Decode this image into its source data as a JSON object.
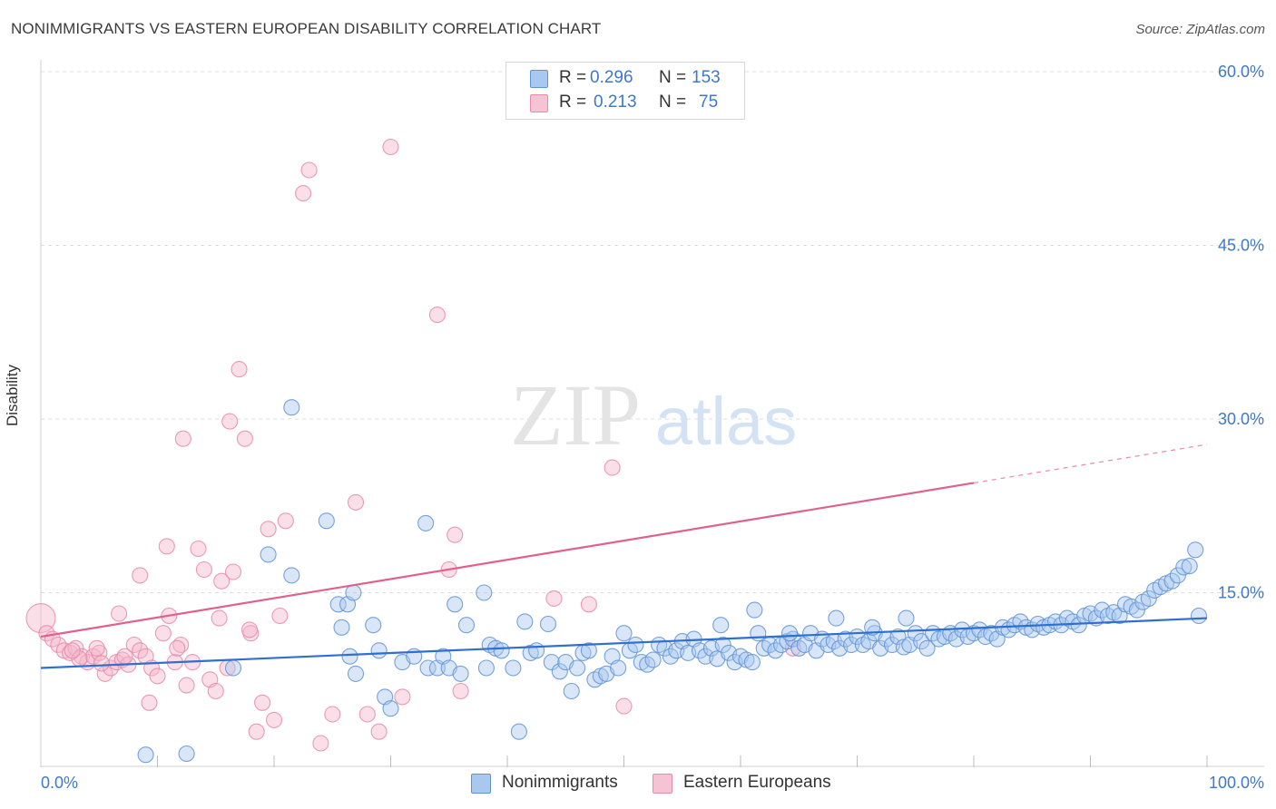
{
  "header": {
    "title": "NONIMMIGRANTS VS EASTERN EUROPEAN DISABILITY CORRELATION CHART",
    "source": "Source: ZipAtlas.com"
  },
  "watermark": {
    "zip": "ZIP",
    "atlas": "atlas"
  },
  "legend": {
    "rows": [
      {
        "r_label": "R =",
        "r_value": "0.296",
        "n_label": "N =",
        "n_value": "153"
      },
      {
        "r_label": "R =",
        "r_value": "0.213",
        "n_label": "N =",
        "n_value": "75"
      }
    ]
  },
  "bottom_legend": {
    "items": [
      {
        "label": "Nonimmigrants"
      },
      {
        "label": "Eastern Europeans"
      }
    ]
  },
  "colors": {
    "blue_fill": "#a9c8ef",
    "blue_stroke": "#5f93d6",
    "blue_line": "#2f6fcf",
    "pink_fill": "#f5b8cb",
    "pink_stroke": "#e88aa8",
    "pink_line": "#e0628c",
    "axis_label": "#3f78c8",
    "grid": "#dddddd"
  },
  "chart_data": {
    "type": "scatter",
    "title": "NONIMMIGRANTS VS EASTERN EUROPEAN DISABILITY CORRELATION CHART",
    "xlabel": "",
    "ylabel": "Disability",
    "xlim": [
      0,
      100
    ],
    "ylim": [
      0,
      60
    ],
    "x_tick_labels": [
      "0.0%",
      "100.0%"
    ],
    "y_ticks": [
      15,
      30,
      45,
      60
    ],
    "y_tick_labels": [
      "15.0%",
      "30.0%",
      "45.0%",
      "60.0%"
    ],
    "grid": true,
    "legend_position": "top-center",
    "series": [
      {
        "name": "Nonimmigrants",
        "color": "#5f93d6",
        "trend": {
          "x": [
            0,
            100
          ],
          "y": [
            8.5,
            12.8
          ],
          "dashed_from": null
        },
        "points": [
          [
            9,
            1.0
          ],
          [
            12.5,
            1.1
          ],
          [
            16.5,
            8.5
          ],
          [
            21.5,
            31.0
          ],
          [
            19.5,
            18.3
          ],
          [
            21.5,
            16.5
          ],
          [
            24.5,
            21.2
          ],
          [
            25.5,
            14.0
          ],
          [
            25.8,
            12.0
          ],
          [
            26.3,
            14.0
          ],
          [
            26.5,
            9.5
          ],
          [
            26.8,
            15.0
          ],
          [
            27,
            8.0
          ],
          [
            28.5,
            12.2
          ],
          [
            29,
            10.0
          ],
          [
            29.5,
            6.0
          ],
          [
            30,
            5.0
          ],
          [
            31,
            9.0
          ],
          [
            32,
            9.5
          ],
          [
            33,
            21.0
          ],
          [
            33.2,
            8.5
          ],
          [
            34,
            8.5
          ],
          [
            34.5,
            9.5
          ],
          [
            35,
            8.5
          ],
          [
            35.5,
            14.0
          ],
          [
            36,
            8.0
          ],
          [
            36.5,
            12.2
          ],
          [
            38,
            15.0
          ],
          [
            38.2,
            8.5
          ],
          [
            38.5,
            10.5
          ],
          [
            39,
            10.2
          ],
          [
            39.5,
            10.0
          ],
          [
            40.5,
            8.5
          ],
          [
            41,
            3.0
          ],
          [
            41.5,
            12.5
          ],
          [
            42,
            9.8
          ],
          [
            42.5,
            10.0
          ],
          [
            43.5,
            12.3
          ],
          [
            43.8,
            9.0
          ],
          [
            44.5,
            8.2
          ],
          [
            45,
            9.0
          ],
          [
            45.5,
            6.5
          ],
          [
            46,
            8.5
          ],
          [
            46.5,
            9.8
          ],
          [
            47,
            10.0
          ],
          [
            47.5,
            7.5
          ],
          [
            48,
            7.8
          ],
          [
            48.5,
            8.0
          ],
          [
            49,
            9.5
          ],
          [
            49.5,
            8.5
          ],
          [
            50,
            11.5
          ],
          [
            50.5,
            10.0
          ],
          [
            51,
            10.5
          ],
          [
            51.5,
            9.0
          ],
          [
            52,
            8.8
          ],
          [
            52.5,
            9.2
          ],
          [
            53,
            10.5
          ],
          [
            53.5,
            10.2
          ],
          [
            54,
            9.5
          ],
          [
            54.5,
            10.0
          ],
          [
            55,
            10.8
          ],
          [
            55.5,
            9.8
          ],
          [
            56,
            11.0
          ],
          [
            56.5,
            10.0
          ],
          [
            57,
            9.5
          ],
          [
            57.5,
            10.2
          ],
          [
            58,
            9.3
          ],
          [
            58.5,
            10.5
          ],
          [
            59,
            9.8
          ],
          [
            59.5,
            9.0
          ],
          [
            60,
            9.5
          ],
          [
            60.5,
            9.2
          ],
          [
            61,
            9.0
          ],
          [
            61.5,
            11.5
          ],
          [
            62,
            10.2
          ],
          [
            62.5,
            10.5
          ],
          [
            63,
            10.0
          ],
          [
            63.5,
            10.5
          ],
          [
            64,
            10.8
          ],
          [
            64.5,
            11.0
          ],
          [
            65,
            10.2
          ],
          [
            65.5,
            10.5
          ],
          [
            66,
            11.5
          ],
          [
            66.5,
            10.0
          ],
          [
            67,
            11.0
          ],
          [
            67.5,
            10.5
          ],
          [
            68,
            10.8
          ],
          [
            68.5,
            10.2
          ],
          [
            69,
            11.0
          ],
          [
            69.5,
            10.5
          ],
          [
            70,
            11.2
          ],
          [
            70.5,
            10.5
          ],
          [
            71,
            10.8
          ],
          [
            71.5,
            11.5
          ],
          [
            72,
            10.2
          ],
          [
            72.5,
            11.0
          ],
          [
            73,
            10.5
          ],
          [
            73.5,
            11.2
          ],
          [
            74,
            10.3
          ],
          [
            74.5,
            10.5
          ],
          [
            75,
            11.5
          ],
          [
            75.5,
            10.8
          ],
          [
            76,
            10.2
          ],
          [
            76.5,
            11.5
          ],
          [
            77,
            11.0
          ],
          [
            77.5,
            11.2
          ],
          [
            78,
            11.5
          ],
          [
            78.5,
            11.0
          ],
          [
            79,
            11.8
          ],
          [
            79.5,
            11.2
          ],
          [
            80,
            11.5
          ],
          [
            80.5,
            11.8
          ],
          [
            81,
            11.2
          ],
          [
            81.5,
            11.5
          ],
          [
            82,
            11.0
          ],
          [
            82.5,
            12.0
          ],
          [
            83,
            11.8
          ],
          [
            83.5,
            12.2
          ],
          [
            84,
            12.5
          ],
          [
            84.5,
            12.0
          ],
          [
            85,
            11.8
          ],
          [
            85.5,
            12.3
          ],
          [
            86,
            12.0
          ],
          [
            86.5,
            12.2
          ],
          [
            87,
            12.5
          ],
          [
            87.5,
            12.2
          ],
          [
            88,
            12.8
          ],
          [
            88.5,
            12.5
          ],
          [
            89,
            12.2
          ],
          [
            89.5,
            13.0
          ],
          [
            90,
            13.2
          ],
          [
            90.5,
            12.8
          ],
          [
            91,
            13.5
          ],
          [
            91.5,
            13.0
          ],
          [
            92,
            13.3
          ],
          [
            92.5,
            13.0
          ],
          [
            93,
            14.0
          ],
          [
            93.5,
            13.8
          ],
          [
            94,
            13.5
          ],
          [
            94.5,
            14.2
          ],
          [
            95,
            14.5
          ],
          [
            95.5,
            15.2
          ],
          [
            96,
            15.5
          ],
          [
            96.5,
            15.8
          ],
          [
            97,
            16.0
          ],
          [
            97.5,
            16.5
          ],
          [
            98,
            17.2
          ],
          [
            98.5,
            17.3
          ],
          [
            99,
            18.7
          ],
          [
            99.3,
            13.0
          ],
          [
            58.3,
            12.2
          ],
          [
            61.2,
            13.5
          ],
          [
            64.2,
            11.5
          ],
          [
            68.2,
            12.8
          ],
          [
            71.3,
            12.0
          ],
          [
            74.2,
            12.8
          ]
        ]
      },
      {
        "name": "Eastern Europeans",
        "color": "#e88aa8",
        "trend": {
          "x": [
            0,
            100
          ],
          "y": [
            11.2,
            27.8
          ],
          "dashed_from": 80
        },
        "points": [
          [
            0,
            12.8
          ],
          [
            0.5,
            11.5
          ],
          [
            1,
            11.0
          ],
          [
            1.5,
            10.5
          ],
          [
            2,
            10.0
          ],
          [
            2.5,
            9.8
          ],
          [
            3,
            10.2
          ],
          [
            3.5,
            9.5
          ],
          [
            4,
            9.0
          ],
          [
            4.5,
            9.5
          ],
          [
            5,
            9.8
          ],
          [
            5.5,
            8.0
          ],
          [
            6,
            8.5
          ],
          [
            6.5,
            9.0
          ],
          [
            7,
            9.2
          ],
          [
            7.5,
            8.8
          ],
          [
            6.7,
            13.2
          ],
          [
            8,
            10.5
          ],
          [
            8.5,
            10.0
          ],
          [
            9,
            9.5
          ],
          [
            9.5,
            8.5
          ],
          [
            10,
            7.8
          ],
          [
            10.5,
            11.5
          ],
          [
            11,
            13.0
          ],
          [
            11.5,
            9.0
          ],
          [
            12,
            10.5
          ],
          [
            12.5,
            7.0
          ],
          [
            13,
            9.0
          ],
          [
            13.5,
            18.8
          ],
          [
            14,
            17.0
          ],
          [
            14.5,
            7.5
          ],
          [
            15,
            6.5
          ],
          [
            15.5,
            16.0
          ],
          [
            16,
            8.5
          ],
          [
            16.5,
            16.8
          ],
          [
            17,
            34.3
          ],
          [
            17.5,
            28.3
          ],
          [
            18,
            11.5
          ],
          [
            18.5,
            3.0
          ],
          [
            19,
            5.5
          ],
          [
            19.5,
            20.5
          ],
          [
            20,
            4.0
          ],
          [
            20.5,
            13.0
          ],
          [
            21,
            21.2
          ],
          [
            22.5,
            49.5
          ],
          [
            23,
            51.5
          ],
          [
            24,
            2.0
          ],
          [
            25,
            4.5
          ],
          [
            27,
            22.8
          ],
          [
            28,
            4.5
          ],
          [
            29,
            3.0
          ],
          [
            31,
            6.0
          ],
          [
            34,
            39.0
          ],
          [
            35,
            17.0
          ],
          [
            35.5,
            20.0
          ],
          [
            36,
            6.5
          ],
          [
            44,
            14.5
          ],
          [
            47,
            14.0
          ],
          [
            49,
            25.8
          ],
          [
            50,
            5.2
          ],
          [
            8.5,
            16.5
          ],
          [
            12.2,
            28.3
          ],
          [
            16.2,
            29.8
          ],
          [
            9.3,
            5.5
          ],
          [
            11.7,
            10.2
          ],
          [
            7.2,
            9.5
          ],
          [
            5.2,
            8.9
          ],
          [
            3.3,
            9.3
          ],
          [
            2.7,
            10.0
          ],
          [
            4.8,
            10.2
          ],
          [
            30,
            53.5
          ],
          [
            10.8,
            19.0
          ],
          [
            15.3,
            12.8
          ],
          [
            17.9,
            11.8
          ],
          [
            64.5,
            10.2
          ]
        ]
      }
    ]
  }
}
